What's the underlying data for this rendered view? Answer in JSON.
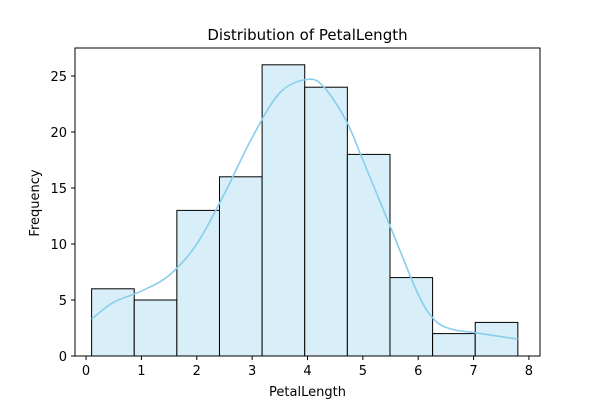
{
  "chart_data": {
    "type": "bar",
    "title": "Distribution of PetalLength",
    "xlabel": "PetalLength",
    "ylabel": "Frequency",
    "xlim": [
      -0.2,
      8.2
    ],
    "ylim": [
      0,
      27.5
    ],
    "xticks": [
      0,
      1,
      2,
      3,
      4,
      5,
      6,
      7,
      8
    ],
    "yticks": [
      0,
      5,
      10,
      15,
      20,
      25
    ],
    "bins": [
      {
        "x0": 0.1,
        "x1": 0.87,
        "count": 6
      },
      {
        "x0": 0.87,
        "x1": 1.64,
        "count": 5
      },
      {
        "x0": 1.64,
        "x1": 2.41,
        "count": 13
      },
      {
        "x0": 2.41,
        "x1": 3.18,
        "count": 16
      },
      {
        "x0": 3.18,
        "x1": 3.95,
        "count": 26
      },
      {
        "x0": 3.95,
        "x1": 4.72,
        "count": 24
      },
      {
        "x0": 4.72,
        "x1": 5.49,
        "count": 18
      },
      {
        "x0": 5.49,
        "x1": 6.26,
        "count": 7
      },
      {
        "x0": 6.26,
        "x1": 7.03,
        "count": 2
      },
      {
        "x0": 7.03,
        "x1": 7.8,
        "count": 3
      }
    ],
    "kde": {
      "x": [
        0.1,
        0.5,
        1.0,
        1.5,
        2.0,
        2.5,
        3.0,
        3.5,
        4.0,
        4.3,
        4.7,
        5.0,
        5.5,
        6.0,
        6.3,
        6.6,
        7.0,
        7.4,
        7.8
      ],
      "y": [
        3.3,
        4.8,
        5.8,
        7.2,
        10.0,
        14.5,
        19.5,
        23.5,
        24.7,
        24.0,
        21.0,
        17.5,
        11.5,
        5.5,
        3.2,
        2.4,
        2.1,
        1.8,
        1.5
      ]
    },
    "colors": {
      "bar_fill": "#d8eef8",
      "bar_edge": "#000000",
      "kde_line": "#87ceeb"
    },
    "grid": false
  }
}
